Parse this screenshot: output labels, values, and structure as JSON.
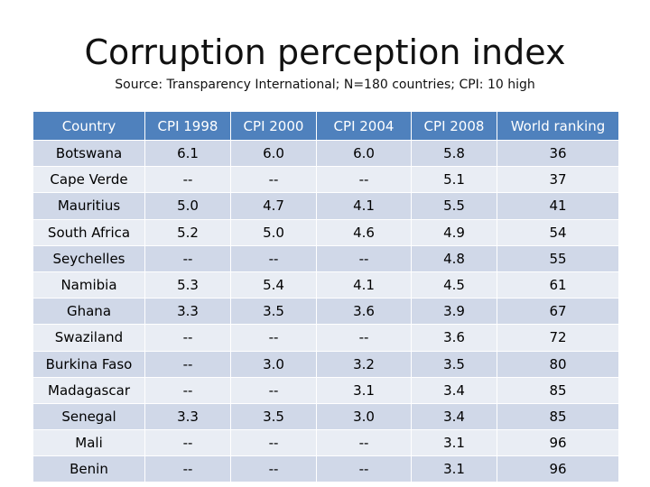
{
  "title": "Corruption perception index",
  "subtitle": "Source: Transparency International; N=180 countries; CPI: 10 high",
  "table": {
    "headers": [
      "Country",
      "CPI 1998",
      "CPI 2000",
      "CPI 2004",
      "CPI 2008",
      "World ranking"
    ],
    "rows": [
      [
        "Botswana",
        "6.1",
        "6.0",
        "6.0",
        "5.8",
        "36"
      ],
      [
        "Cape Verde",
        "--",
        "--",
        "--",
        "5.1",
        "37"
      ],
      [
        "Mauritius",
        "5.0",
        "4.7",
        "4.1",
        "5.5",
        "41"
      ],
      [
        "South Africa",
        "5.2",
        "5.0",
        "4.6",
        "4.9",
        "54"
      ],
      [
        "Seychelles",
        "--",
        "--",
        "--",
        "4.8",
        "55"
      ],
      [
        "Namibia",
        "5.3",
        "5.4",
        "4.1",
        "4.5",
        "61"
      ],
      [
        "Ghana",
        "3.3",
        "3.5",
        "3.6",
        "3.9",
        "67"
      ],
      [
        "Swaziland",
        "--",
        "--",
        "--",
        "3.6",
        "72"
      ],
      [
        "Burkina Faso",
        "--",
        "3.0",
        "3.2",
        "3.5",
        "80"
      ],
      [
        "Madagascar",
        "--",
        "--",
        "3.1",
        "3.4",
        "85"
      ],
      [
        "Senegal",
        "3.3",
        "3.5",
        "3.0",
        "3.4",
        "85"
      ],
      [
        "Mali",
        "--",
        "--",
        "--",
        "3.1",
        "96"
      ],
      [
        "Benin",
        "--",
        "--",
        "--",
        "3.1",
        "96"
      ]
    ]
  },
  "colors": {
    "header_bg": "#4f81bd",
    "row_odd_bg": "#d0d8e8",
    "row_even_bg": "#e9edf4"
  }
}
